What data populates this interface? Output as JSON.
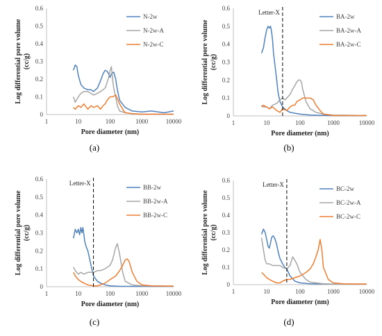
{
  "colors": {
    "blue": "#4F81BD",
    "gray": "#A5A5A5",
    "orange": "#ED7D31"
  },
  "chart_data": [
    {
      "type": "line",
      "panel_label": "(a)",
      "xlabel": "Pore diameter (nm)",
      "ylabel": "Log differential pore volume (cc/g)",
      "xscale": "log",
      "xlim": [
        1,
        10000
      ],
      "ylim": [
        0,
        0.6
      ],
      "xticks": [
        "1",
        "10",
        "100",
        "1000",
        "10000"
      ],
      "yticks": [
        "0",
        "0.1",
        "0.2",
        "0.3",
        "0.4",
        "0.5",
        "0.6"
      ],
      "legend": "top-right",
      "annotation": null,
      "series": [
        {
          "name": "N-2w",
          "color": "#4F81BD",
          "x": [
            7,
            8,
            9,
            10,
            12,
            15,
            20,
            25,
            30,
            40,
            50,
            60,
            70,
            80,
            90,
            100,
            110,
            120,
            130,
            150,
            170,
            200,
            300,
            500,
            1000,
            2000,
            5000,
            10000
          ],
          "y": [
            0.25,
            0.28,
            0.27,
            0.22,
            0.17,
            0.15,
            0.14,
            0.14,
            0.13,
            0.15,
            0.19,
            0.23,
            0.25,
            0.245,
            0.23,
            0.21,
            0.23,
            0.235,
            0.24,
            0.2,
            0.14,
            0.08,
            0.04,
            0.02,
            0.015,
            0.02,
            0.01,
            0.02
          ]
        },
        {
          "name": "N-2w-A",
          "color": "#A5A5A5",
          "x": [
            7,
            8,
            10,
            12,
            15,
            20,
            25,
            30,
            40,
            50,
            60,
            70,
            80,
            90,
            100,
            110,
            120,
            130,
            150,
            170,
            200,
            300,
            500,
            1000,
            10000
          ],
          "y": [
            0.1,
            0.07,
            0.1,
            0.12,
            0.13,
            0.13,
            0.12,
            0.11,
            0.12,
            0.13,
            0.14,
            0.15,
            0.18,
            0.21,
            0.25,
            0.27,
            0.2,
            0.15,
            0.1,
            0.05,
            0.02,
            0.01,
            0.005,
            0.002,
            0.002
          ]
        },
        {
          "name": "N-2w-C",
          "color": "#ED7D31",
          "x": [
            7,
            8,
            10,
            12,
            15,
            20,
            25,
            30,
            40,
            50,
            60,
            70,
            80,
            100,
            120,
            150,
            170,
            200,
            250,
            300,
            500,
            1000,
            5000,
            10000
          ],
          "y": [
            0.04,
            0.03,
            0.05,
            0.04,
            0.06,
            0.03,
            0.05,
            0.04,
            0.05,
            0.03,
            0.05,
            0.06,
            0.08,
            0.1,
            0.1,
            0.11,
            0.09,
            0.06,
            0.03,
            0.01,
            0.005,
            0.002,
            0.002,
            0.002
          ]
        }
      ]
    },
    {
      "type": "line",
      "panel_label": "(b)",
      "xlabel": "Pore diameter (nm)",
      "ylabel": "Log differential pore volume (cc/g)",
      "xscale": "log",
      "xlim": [
        1,
        10000
      ],
      "ylim": [
        0,
        0.6
      ],
      "xticks": [
        "1",
        "10",
        "100",
        "1000",
        "10000"
      ],
      "yticks": [
        "0",
        "0.1",
        "0.2",
        "0.3",
        "0.4",
        "0.5",
        "0.6"
      ],
      "legend": "top-right",
      "annotation": {
        "text": "Letter-X",
        "x": 30
      },
      "series": [
        {
          "name": "BA-2w",
          "color": "#4F81BD",
          "x": [
            7,
            8,
            9,
            10,
            11,
            12,
            13,
            14,
            15,
            16,
            18,
            20,
            22,
            25,
            30,
            40,
            50,
            70,
            100,
            200,
            500,
            1000,
            10000
          ],
          "y": [
            0.35,
            0.38,
            0.44,
            0.48,
            0.5,
            0.49,
            0.5,
            0.47,
            0.42,
            0.35,
            0.27,
            0.2,
            0.13,
            0.08,
            0.05,
            0.03,
            0.02,
            0.015,
            0.01,
            0.005,
            0.003,
            0.002,
            0.002
          ]
        },
        {
          "name": "BA-2w-A",
          "color": "#A5A5A5",
          "x": [
            7,
            8,
            10,
            12,
            15,
            20,
            25,
            30,
            35,
            40,
            50,
            60,
            70,
            80,
            90,
            100,
            110,
            120,
            150,
            200,
            300,
            500,
            1000,
            5000,
            10000
          ],
          "y": [
            0.06,
            0.05,
            0.05,
            0.04,
            0.06,
            0.07,
            0.09,
            0.1,
            0.09,
            0.1,
            0.12,
            0.15,
            0.17,
            0.19,
            0.2,
            0.2,
            0.19,
            0.15,
            0.08,
            0.04,
            0.02,
            0.01,
            0.005,
            0.003,
            0.003
          ]
        },
        {
          "name": "BA-2w-C",
          "color": "#ED7D31",
          "x": [
            7,
            8,
            10,
            12,
            15,
            20,
            25,
            30,
            40,
            50,
            60,
            70,
            80,
            100,
            120,
            150,
            200,
            250,
            300,
            400,
            500,
            1000,
            10000
          ],
          "y": [
            0.05,
            0.06,
            0.05,
            0.04,
            0.05,
            0.03,
            0.02,
            0.04,
            0.03,
            0.05,
            0.06,
            0.06,
            0.08,
            0.09,
            0.1,
            0.1,
            0.1,
            0.09,
            0.06,
            0.03,
            0.01,
            0.002,
            0.002
          ]
        }
      ]
    },
    {
      "type": "line",
      "panel_label": "(c)",
      "xlabel": "Pore diameter (nm)",
      "ylabel": "Log differential pore volume (cc/g)",
      "xscale": "log",
      "xlim": [
        1,
        10000
      ],
      "ylim": [
        0,
        0.6
      ],
      "xticks": [
        "1",
        "10",
        "100",
        "1000",
        "10000"
      ],
      "yticks": [
        "0",
        "0.1",
        "0.2",
        "0.3",
        "0.4",
        "0.5",
        "0.6"
      ],
      "legend": "top-right",
      "annotation": {
        "text": "Letter-X",
        "x": 30
      },
      "series": [
        {
          "name": "BB-2w",
          "color": "#4F81BD",
          "x": [
            7,
            8,
            9,
            10,
            11,
            12,
            13,
            14,
            15,
            16,
            18,
            20,
            25,
            30,
            40,
            50,
            70,
            100,
            200,
            1000,
            10000
          ],
          "y": [
            0.27,
            0.32,
            0.3,
            0.32,
            0.29,
            0.33,
            0.3,
            0.33,
            0.29,
            0.25,
            0.22,
            0.2,
            0.12,
            0.06,
            0.03,
            0.02,
            0.01,
            0.005,
            0.002,
            0.002,
            0.002
          ]
        },
        {
          "name": "BB-2w-A",
          "color": "#A5A5A5",
          "x": [
            7,
            8,
            10,
            12,
            15,
            20,
            25,
            30,
            40,
            50,
            70,
            100,
            120,
            150,
            170,
            200,
            250,
            300,
            500,
            1000,
            10000
          ],
          "y": [
            0.11,
            0.09,
            0.07,
            0.08,
            0.07,
            0.08,
            0.08,
            0.08,
            0.09,
            0.09,
            0.1,
            0.12,
            0.15,
            0.22,
            0.24,
            0.18,
            0.08,
            0.03,
            0.01,
            0.005,
            0.003
          ]
        },
        {
          "name": "BB-2w-C",
          "color": "#ED7D31",
          "x": [
            7,
            8,
            10,
            12,
            15,
            20,
            30,
            40,
            50,
            70,
            100,
            150,
            200,
            250,
            300,
            350,
            400,
            500,
            700,
            1000,
            2000,
            5000,
            10000
          ],
          "y": [
            0.08,
            0.06,
            0.04,
            0.03,
            0.02,
            0.01,
            0.005,
            0.005,
            0.01,
            0.02,
            0.04,
            0.06,
            0.09,
            0.12,
            0.15,
            0.155,
            0.14,
            0.08,
            0.03,
            0.01,
            0.005,
            0.004,
            0.004
          ]
        }
      ]
    },
    {
      "type": "line",
      "panel_label": "(d)",
      "xlabel": "Pore diameter (nm)",
      "ylabel": "Log differential pore volume (cc/g)",
      "xscale": "log",
      "xlim": [
        1,
        10000
      ],
      "ylim": [
        0,
        0.6
      ],
      "xticks": [
        "1",
        "10",
        "100",
        "1000",
        "10000"
      ],
      "yticks": [
        "0",
        "0.1",
        "0.2",
        "0.3",
        "0.4",
        "0.5",
        "0.6"
      ],
      "legend": "top-right",
      "annotation": {
        "text": "Letter-X",
        "x": 40
      },
      "series": [
        {
          "name": "BC-2w",
          "color": "#4F81BD",
          "x": [
            7,
            8,
            9,
            10,
            11,
            12,
            13,
            14,
            15,
            16,
            18,
            20,
            22,
            25,
            30,
            35,
            40,
            50,
            70,
            100,
            200,
            1000,
            10000
          ],
          "y": [
            0.29,
            0.32,
            0.3,
            0.26,
            0.22,
            0.21,
            0.24,
            0.27,
            0.28,
            0.28,
            0.26,
            0.23,
            0.19,
            0.15,
            0.12,
            0.1,
            0.09,
            0.05,
            0.02,
            0.01,
            0.005,
            0.003,
            0.003
          ]
        },
        {
          "name": "BC-2w-A",
          "color": "#A5A5A5",
          "x": [
            7,
            8,
            9,
            10,
            12,
            15,
            20,
            25,
            30,
            40,
            50,
            60,
            70,
            80,
            100,
            150,
            200,
            300,
            500,
            1000,
            5000,
            10000
          ],
          "y": [
            0.27,
            0.2,
            0.14,
            0.12,
            0.12,
            0.11,
            0.11,
            0.11,
            0.1,
            0.09,
            0.11,
            0.16,
            0.14,
            0.12,
            0.07,
            0.03,
            0.015,
            0.01,
            0.005,
            0.003,
            0.003,
            0.003
          ]
        },
        {
          "name": "BC-2w-C",
          "color": "#ED7D31",
          "x": [
            7,
            8,
            10,
            12,
            15,
            20,
            25,
            30,
            40,
            50,
            70,
            100,
            150,
            200,
            250,
            300,
            350,
            400,
            450,
            500,
            700,
            1000,
            2000,
            5000,
            10000
          ],
          "y": [
            0.07,
            0.06,
            0.04,
            0.03,
            0.02,
            0.01,
            0.01,
            0.02,
            0.03,
            0.03,
            0.04,
            0.05,
            0.07,
            0.09,
            0.12,
            0.16,
            0.2,
            0.26,
            0.2,
            0.1,
            0.03,
            0.01,
            0.005,
            0.004,
            0.004
          ]
        }
      ]
    }
  ]
}
